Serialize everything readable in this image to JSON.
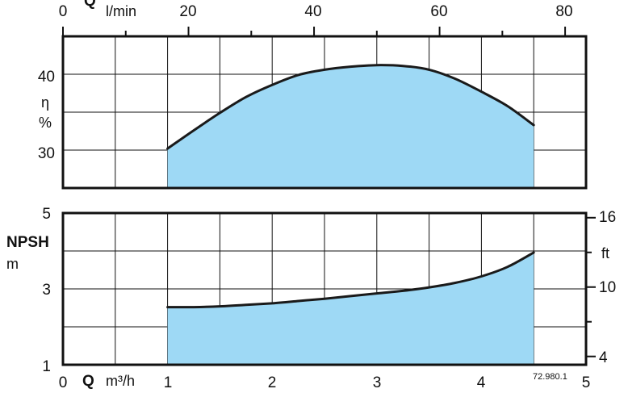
{
  "chart_data": [
    {
      "type": "area",
      "panel": "efficiency",
      "top_axis": {
        "symbol": "Q",
        "unit": "l/min",
        "ticks": [
          "0",
          "20",
          "40",
          "60",
          "80"
        ],
        "tick_values": [
          0,
          20,
          40,
          60,
          80
        ],
        "range": [
          0,
          83.33
        ]
      },
      "y_axis": {
        "symbol": "η",
        "unit": "%",
        "ticks": [
          "30",
          "40"
        ],
        "tick_values": [
          30,
          40
        ],
        "range": [
          25,
          45
        ]
      },
      "fill_color": "#9ed9f5",
      "line_color": "#1a1a1a",
      "grid": true,
      "x_unit": "m³/h",
      "x": [
        1.0,
        1.25,
        1.5,
        1.75,
        2.0,
        2.25,
        2.5,
        2.75,
        3.0,
        3.25,
        3.5,
        3.75,
        4.0,
        4.25,
        4.5
      ],
      "y": [
        30.2,
        32.6,
        34.9,
        37.0,
        38.6,
        39.9,
        40.6,
        41.0,
        41.2,
        41.1,
        40.6,
        39.4,
        37.7,
        35.8,
        33.3
      ]
    },
    {
      "type": "area",
      "panel": "npsh",
      "x_axis": {
        "symbol": "Q",
        "unit": "m³/h",
        "ticks": [
          "0",
          "1",
          "2",
          "3",
          "4",
          "5"
        ],
        "tick_values": [
          0,
          1,
          2,
          3,
          4,
          5
        ],
        "range": [
          0,
          5
        ]
      },
      "y_axis": {
        "label": "NPSH",
        "unit": "m",
        "ticks": [
          "1",
          "3",
          "5"
        ],
        "tick_values": [
          1,
          3,
          5
        ],
        "range": [
          1,
          5
        ]
      },
      "right_axis": {
        "unit": "ft",
        "ticks": [
          "4",
          "10",
          "16"
        ],
        "tick_values": [
          4,
          10,
          16
        ],
        "range": [
          3.281,
          16.404
        ]
      },
      "fill_color": "#9ed9f5",
      "line_color": "#1a1a1a",
      "grid": true,
      "x": [
        1.0,
        1.25,
        1.5,
        1.75,
        2.0,
        2.25,
        2.5,
        2.75,
        3.0,
        3.25,
        3.5,
        3.75,
        4.0,
        4.25,
        4.5
      ],
      "y": [
        2.52,
        2.52,
        2.54,
        2.58,
        2.62,
        2.68,
        2.74,
        2.81,
        2.88,
        2.95,
        3.04,
        3.16,
        3.33,
        3.58,
        3.96
      ]
    }
  ],
  "figure_ref": "72.980.1"
}
